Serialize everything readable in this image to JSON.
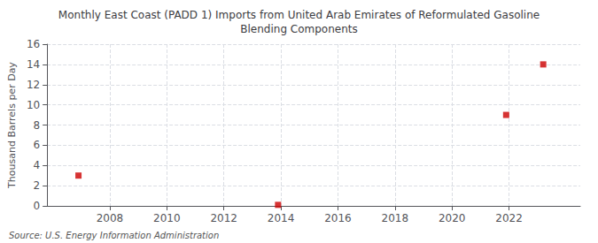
{
  "chart_data": {
    "type": "scatter",
    "title": "Monthly East Coast (PADD 1) Imports from United Arab Emirates of Reformulated Gasoline\nBlending Components",
    "ylabel": "Thousand Barrels per Day",
    "source": "Source: U.S. Energy Information Administration",
    "x": [
      2006.9,
      2013.9,
      2021.9,
      2023.2
    ],
    "values": [
      3.0,
      0.1,
      9.0,
      14.0
    ],
    "color": "#cc0000",
    "marker": "square",
    "xlim": [
      2005.8,
      2024.5
    ],
    "xticks": [
      2008,
      2010,
      2012,
      2014,
      2016,
      2018,
      2020,
      2022
    ],
    "ylim": [
      0,
      16
    ],
    "yticks": [
      0,
      2,
      4,
      6,
      8,
      10,
      12,
      14,
      16
    ],
    "grid": true
  }
}
